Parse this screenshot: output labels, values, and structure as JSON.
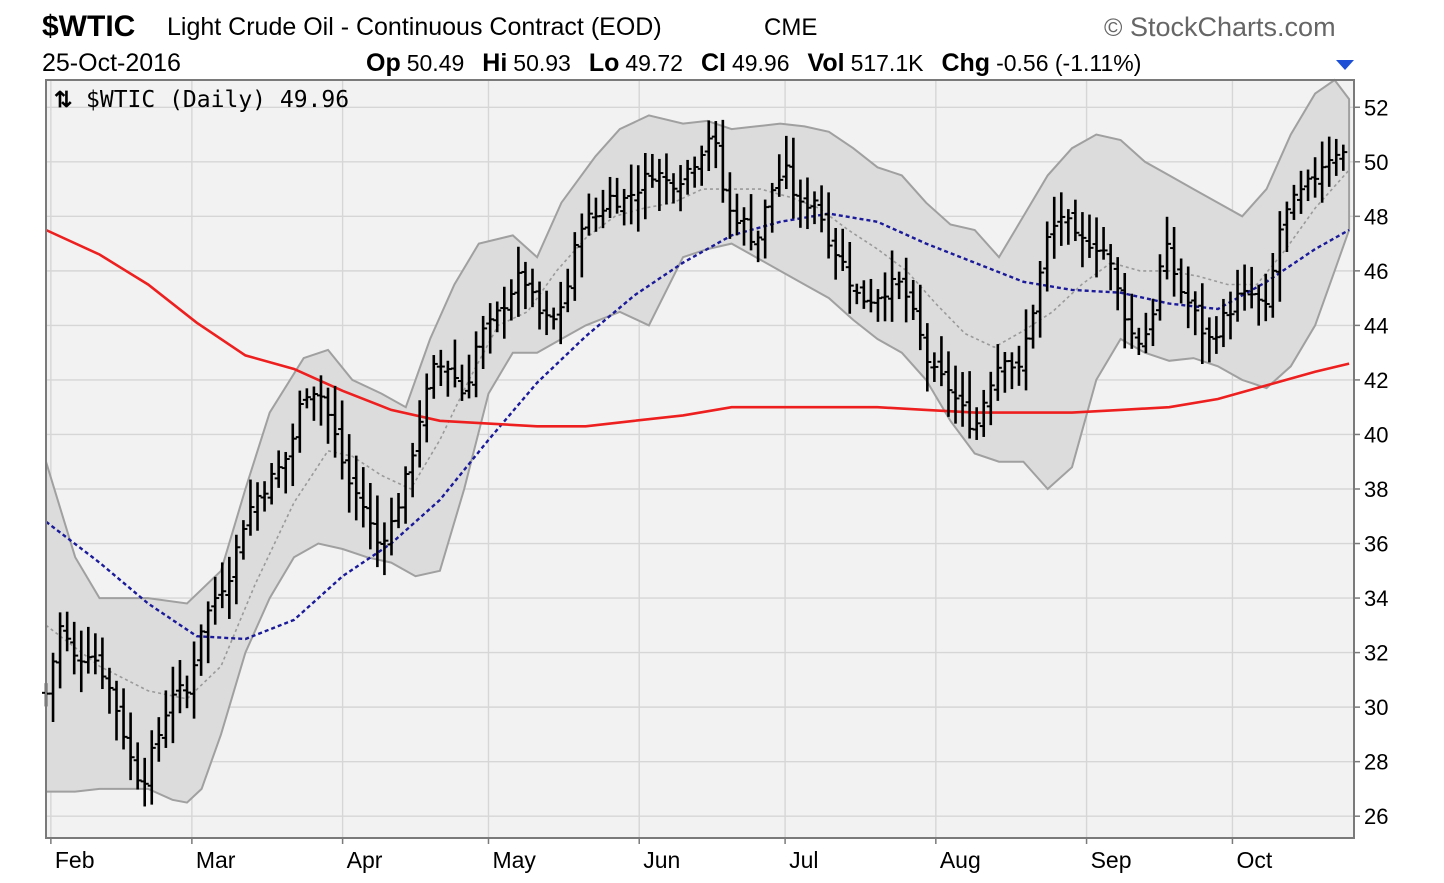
{
  "header": {
    "symbol": "$WTIC",
    "name": "Light Crude Oil - Continuous Contract (EOD)",
    "exchange": "CME",
    "brand": "StockCharts.com",
    "brand_symbol": "©",
    "date": "25-Oct-2016",
    "stats": [
      {
        "label": "Op",
        "value": "50.49"
      },
      {
        "label": "Hi",
        "value": "50.93"
      },
      {
        "label": "Lo",
        "value": "49.72"
      },
      {
        "label": "Cl",
        "value": "49.96"
      },
      {
        "label": "Vol",
        "value": "517.1K"
      },
      {
        "label": "Chg",
        "value": "-0.56 (-1.11%)"
      }
    ],
    "chg_direction": "down"
  },
  "legend": {
    "icon": "up-down-arrows-icon",
    "text": "$WTIC (Daily) 49.96"
  },
  "chart_data": {
    "type": "ohlc",
    "title": "$WTIC Light Crude Oil - Continuous Contract (EOD) CME",
    "y_ticks": [
      26,
      28,
      30,
      32,
      34,
      36,
      38,
      40,
      42,
      44,
      46,
      48,
      50,
      52
    ],
    "ylim": [
      25.2,
      53.0
    ],
    "x_ticks": [
      {
        "label": "Feb",
        "day": 0
      },
      {
        "label": "Mar",
        "day": 29
      },
      {
        "label": "Apr",
        "day": 60
      },
      {
        "label": "May",
        "day": 90
      },
      {
        "label": "Jun",
        "day": 121
      },
      {
        "label": "Jul",
        "day": 151
      },
      {
        "label": "Aug",
        "day": 182
      },
      {
        "label": "Sep",
        "day": 213
      },
      {
        "label": "Oct",
        "day": 243
      }
    ],
    "xlim": [
      -1,
      268
    ],
    "grid": true,
    "colors": {
      "background": "#f2f2f2",
      "grid": "#d6d6d6",
      "band_fill": "#dcdcdc",
      "band_edge": "#a0a0a0",
      "bar": "#000000",
      "ma_long": "#ee1f1f",
      "ma_short": "#1a1a9a",
      "ma_mid": "#9a9a9a",
      "chg_arrow": "#1c4fd6"
    },
    "price_closes": [
      [
        -1,
        30.5
      ],
      [
        2,
        33.0
      ],
      [
        5,
        31.7
      ],
      [
        8,
        32.1
      ],
      [
        11,
        31.2
      ],
      [
        14,
        29.7
      ],
      [
        17,
        27.7
      ],
      [
        19,
        27.3
      ],
      [
        22,
        28.9
      ],
      [
        25,
        30.6
      ],
      [
        28,
        30.5
      ],
      [
        31,
        33.0
      ],
      [
        34,
        34.1
      ],
      [
        37,
        35.0
      ],
      [
        40,
        37.0
      ],
      [
        43,
        37.9
      ],
      [
        46,
        38.5
      ],
      [
        49,
        39.3
      ],
      [
        52,
        41.6
      ],
      [
        55,
        41.7
      ],
      [
        58,
        40.2
      ],
      [
        61,
        38.3
      ],
      [
        64,
        37.5
      ],
      [
        67,
        36.0
      ],
      [
        70,
        36.7
      ],
      [
        73,
        38.3
      ],
      [
        76,
        40.7
      ],
      [
        79,
        42.5
      ],
      [
        82,
        42.5
      ],
      [
        85,
        41.4
      ],
      [
        88,
        43.6
      ],
      [
        91,
        44.1
      ],
      [
        94,
        45.1
      ],
      [
        97,
        45.9
      ],
      [
        100,
        44.5
      ],
      [
        103,
        44.0
      ],
      [
        106,
        45.2
      ],
      [
        109,
        47.8
      ],
      [
        112,
        48.0
      ],
      [
        115,
        48.7
      ],
      [
        118,
        48.6
      ],
      [
        121,
        49.1
      ],
      [
        124,
        49.7
      ],
      [
        127,
        49.2
      ],
      [
        130,
        49.5
      ],
      [
        133,
        50.2
      ],
      [
        136,
        51.2
      ],
      [
        139,
        48.2
      ],
      [
        142,
        47.9
      ],
      [
        145,
        47.0
      ],
      [
        148,
        48.9
      ],
      [
        151,
        49.7
      ],
      [
        154,
        48.3
      ],
      [
        157,
        48.7
      ],
      [
        160,
        47.2
      ],
      [
        163,
        46.2
      ],
      [
        166,
        45.0
      ],
      [
        169,
        45.0
      ],
      [
        172,
        45.4
      ],
      [
        175,
        45.5
      ],
      [
        178,
        44.0
      ],
      [
        181,
        42.3
      ],
      [
        184,
        41.9
      ],
      [
        187,
        41.0
      ],
      [
        190,
        40.2
      ],
      [
        193,
        41.9
      ],
      [
        196,
        43.0
      ],
      [
        199,
        42.2
      ],
      [
        202,
        44.6
      ],
      [
        205,
        47.2
      ],
      [
        208,
        48.1
      ],
      [
        211,
        47.0
      ],
      [
        214,
        47.1
      ],
      [
        217,
        46.7
      ],
      [
        220,
        44.9
      ],
      [
        223,
        43.3
      ],
      [
        226,
        43.9
      ],
      [
        229,
        47.0
      ],
      [
        232,
        45.4
      ],
      [
        235,
        44.5
      ],
      [
        238,
        43.4
      ],
      [
        241,
        44.2
      ],
      [
        244,
        45.0
      ],
      [
        247,
        45.1
      ],
      [
        250,
        44.5
      ],
      [
        253,
        47.8
      ],
      [
        256,
        48.6
      ],
      [
        259,
        49.2
      ],
      [
        262,
        50.1
      ],
      [
        265,
        50.5
      ],
      [
        267,
        49.96
      ]
    ],
    "ma_long": [
      [
        -1,
        47.5
      ],
      [
        10,
        46.6
      ],
      [
        20,
        45.5
      ],
      [
        30,
        44.1
      ],
      [
        40,
        42.9
      ],
      [
        50,
        42.4
      ],
      [
        60,
        41.6
      ],
      [
        70,
        40.9
      ],
      [
        80,
        40.5
      ],
      [
        90,
        40.4
      ],
      [
        100,
        40.3
      ],
      [
        110,
        40.3
      ],
      [
        120,
        40.5
      ],
      [
        130,
        40.7
      ],
      [
        140,
        41.0
      ],
      [
        150,
        41.0
      ],
      [
        160,
        41.0
      ],
      [
        170,
        41.0
      ],
      [
        180,
        40.9
      ],
      [
        190,
        40.8
      ],
      [
        200,
        40.8
      ],
      [
        210,
        40.8
      ],
      [
        220,
        40.9
      ],
      [
        230,
        41.0
      ],
      [
        240,
        41.3
      ],
      [
        250,
        41.8
      ],
      [
        260,
        42.3
      ],
      [
        267,
        42.6
      ]
    ],
    "ma_short": [
      [
        -1,
        36.8
      ],
      [
        10,
        35.3
      ],
      [
        20,
        33.8
      ],
      [
        30,
        32.6
      ],
      [
        40,
        32.5
      ],
      [
        50,
        33.2
      ],
      [
        60,
        34.8
      ],
      [
        70,
        36.0
      ],
      [
        80,
        37.6
      ],
      [
        90,
        39.8
      ],
      [
        100,
        41.9
      ],
      [
        110,
        43.6
      ],
      [
        120,
        45.1
      ],
      [
        130,
        46.3
      ],
      [
        140,
        47.3
      ],
      [
        150,
        47.8
      ],
      [
        160,
        48.1
      ],
      [
        170,
        47.8
      ],
      [
        180,
        47.0
      ],
      [
        190,
        46.3
      ],
      [
        200,
        45.6
      ],
      [
        210,
        45.3
      ],
      [
        220,
        45.2
      ],
      [
        230,
        44.8
      ],
      [
        240,
        44.6
      ],
      [
        250,
        45.6
      ],
      [
        260,
        46.8
      ],
      [
        267,
        47.5
      ]
    ],
    "band_upper": [
      [
        -1,
        39.0
      ],
      [
        5,
        35.5
      ],
      [
        10,
        34.0
      ],
      [
        20,
        34.0
      ],
      [
        28,
        33.8
      ],
      [
        35,
        35.0
      ],
      [
        40,
        38.0
      ],
      [
        45,
        40.8
      ],
      [
        52,
        42.8
      ],
      [
        57,
        43.1
      ],
      [
        62,
        42.0
      ],
      [
        68,
        41.5
      ],
      [
        73,
        41.0
      ],
      [
        78,
        43.5
      ],
      [
        83,
        45.5
      ],
      [
        88,
        47.0
      ],
      [
        95,
        47.3
      ],
      [
        100,
        46.5
      ],
      [
        105,
        48.5
      ],
      [
        112,
        50.2
      ],
      [
        117,
        51.2
      ],
      [
        123,
        51.7
      ],
      [
        130,
        51.4
      ],
      [
        135,
        51.5
      ],
      [
        140,
        51.2
      ],
      [
        145,
        51.3
      ],
      [
        150,
        51.4
      ],
      [
        155,
        51.3
      ],
      [
        160,
        51.1
      ],
      [
        165,
        50.5
      ],
      [
        170,
        49.8
      ],
      [
        175,
        49.5
      ],
      [
        180,
        48.5
      ],
      [
        185,
        47.7
      ],
      [
        190,
        47.5
      ],
      [
        195,
        46.5
      ],
      [
        200,
        48.0
      ],
      [
        205,
        49.5
      ],
      [
        210,
        50.5
      ],
      [
        215,
        51.0
      ],
      [
        220,
        50.8
      ],
      [
        225,
        50.0
      ],
      [
        230,
        49.5
      ],
      [
        235,
        49.0
      ],
      [
        240,
        48.5
      ],
      [
        245,
        48.0
      ],
      [
        250,
        49.0
      ],
      [
        255,
        51.0
      ],
      [
        260,
        52.5
      ],
      [
        264,
        53.0
      ],
      [
        267,
        52.3
      ]
    ],
    "band_lower": [
      [
        -1,
        26.9
      ],
      [
        5,
        26.9
      ],
      [
        10,
        27.0
      ],
      [
        15,
        27.0
      ],
      [
        20,
        27.0
      ],
      [
        25,
        26.6
      ],
      [
        28,
        26.5
      ],
      [
        31,
        27.0
      ],
      [
        35,
        29.0
      ],
      [
        40,
        32.0
      ],
      [
        45,
        34.0
      ],
      [
        50,
        35.5
      ],
      [
        55,
        36.0
      ],
      [
        60,
        35.8
      ],
      [
        65,
        35.5
      ],
      [
        70,
        35.3
      ],
      [
        75,
        34.8
      ],
      [
        80,
        35.0
      ],
      [
        85,
        38.0
      ],
      [
        90,
        41.5
      ],
      [
        95,
        43.0
      ],
      [
        100,
        43.0
      ],
      [
        105,
        43.5
      ],
      [
        110,
        44.0
      ],
      [
        117,
        44.5
      ],
      [
        123,
        44.0
      ],
      [
        130,
        46.5
      ],
      [
        135,
        46.8
      ],
      [
        140,
        47.0
      ],
      [
        145,
        46.5
      ],
      [
        150,
        46.0
      ],
      [
        155,
        45.5
      ],
      [
        160,
        45.0
      ],
      [
        165,
        44.2
      ],
      [
        170,
        43.5
      ],
      [
        175,
        43.0
      ],
      [
        180,
        42.0
      ],
      [
        185,
        40.5
      ],
      [
        190,
        39.3
      ],
      [
        195,
        39.0
      ],
      [
        200,
        39.0
      ],
      [
        205,
        38.0
      ],
      [
        210,
        38.8
      ],
      [
        215,
        42.0
      ],
      [
        220,
        43.5
      ],
      [
        225,
        43.0
      ],
      [
        230,
        42.7
      ],
      [
        235,
        42.8
      ],
      [
        240,
        42.5
      ],
      [
        245,
        42.0
      ],
      [
        250,
        41.7
      ],
      [
        255,
        42.5
      ],
      [
        260,
        44.0
      ],
      [
        264,
        46.0
      ],
      [
        267,
        47.5
      ]
    ],
    "ma_mid": [
      [
        -1,
        33.0
      ],
      [
        10,
        31.5
      ],
      [
        20,
        30.6
      ],
      [
        28,
        30.3
      ],
      [
        35,
        31.5
      ],
      [
        42,
        34.5
      ],
      [
        50,
        37.5
      ],
      [
        57,
        39.4
      ],
      [
        62,
        39.2
      ],
      [
        68,
        38.5
      ],
      [
        74,
        38.0
      ],
      [
        80,
        39.8
      ],
      [
        86,
        42.0
      ],
      [
        92,
        44.0
      ],
      [
        98,
        44.5
      ],
      [
        104,
        46.0
      ],
      [
        110,
        47.2
      ],
      [
        116,
        48.0
      ],
      [
        122,
        48.3
      ],
      [
        128,
        48.5
      ],
      [
        134,
        49.0
      ],
      [
        140,
        49.0
      ],
      [
        146,
        49.0
      ],
      [
        152,
        48.7
      ],
      [
        158,
        48.3
      ],
      [
        164,
        47.5
      ],
      [
        170,
        46.8
      ],
      [
        176,
        46.0
      ],
      [
        182,
        44.8
      ],
      [
        188,
        43.7
      ],
      [
        194,
        43.2
      ],
      [
        200,
        43.8
      ],
      [
        206,
        44.5
      ],
      [
        212,
        45.5
      ],
      [
        218,
        46.3
      ],
      [
        224,
        46.0
      ],
      [
        230,
        46.0
      ],
      [
        236,
        45.8
      ],
      [
        242,
        45.5
      ],
      [
        248,
        45.5
      ],
      [
        254,
        46.8
      ],
      [
        260,
        48.3
      ],
      [
        267,
        49.7
      ]
    ]
  }
}
